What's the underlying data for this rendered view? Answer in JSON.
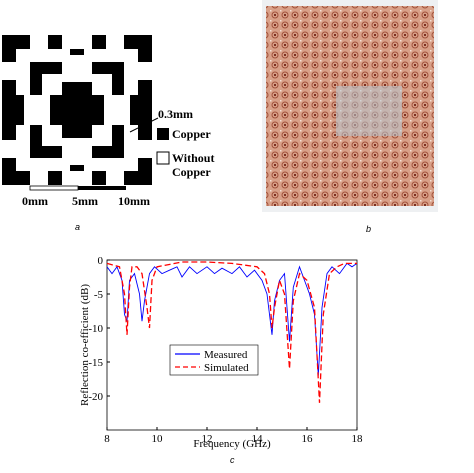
{
  "panels": {
    "a_label": "a",
    "b_label": "b",
    "c_label": "c",
    "thickness": "0.3mm",
    "copper": "Copper",
    "without_copper": [
      "Without",
      "Copper"
    ],
    "scale": [
      "0mm",
      "5mm",
      "10mm"
    ]
  },
  "chart_data": {
    "type": "line",
    "xlabel": "Frequency (GHz)",
    "ylabel": "Reflection co-efficient (dB)",
    "xlim": [
      8,
      18
    ],
    "xticks": [
      8,
      10,
      12,
      14,
      16,
      18
    ],
    "ylim": [
      -25,
      0
    ],
    "yticks": [
      0,
      -5,
      -10,
      -15,
      -20
    ],
    "legend": "center-left",
    "series": [
      {
        "name": "Measured",
        "color": "#0000ff",
        "dash": false,
        "x": [
          8,
          8.2,
          8.4,
          8.6,
          8.7,
          8.8,
          8.9,
          9.1,
          9.3,
          9.4,
          9.5,
          9.7,
          9.9,
          10.2,
          10.5,
          10.8,
          11,
          11.3,
          11.6,
          12,
          12.3,
          12.6,
          13,
          13.3,
          13.6,
          13.9,
          14.2,
          14.4,
          14.5,
          14.6,
          14.7,
          14.9,
          15.1,
          15.3,
          15.45,
          15.7,
          15.9,
          16.1,
          16.3,
          16.45,
          16.6,
          16.8,
          17,
          17.3,
          17.6,
          17.8,
          18
        ],
        "values": [
          -1,
          -2,
          -1,
          -3,
          -8,
          -9,
          -3,
          -2,
          -5,
          -9,
          -6,
          -2,
          -1,
          -2,
          -1.5,
          -1,
          -2.5,
          -1,
          -2,
          -1,
          -2,
          -1.2,
          -2,
          -1,
          -2.5,
          -1.5,
          -3,
          -5,
          -8,
          -11,
          -6,
          -3,
          -2,
          -12,
          -4,
          -1,
          -3,
          -5,
          -8,
          -17,
          -7,
          -2,
          -1,
          -2,
          -0.5,
          -1,
          -0.5
        ]
      },
      {
        "name": "Simulated",
        "color": "#ff0000",
        "dash": true,
        "x": [
          8,
          8.5,
          8.7,
          8.8,
          8.9,
          9,
          9.2,
          9.4,
          9.6,
          9.7,
          9.8,
          10,
          11,
          12,
          13,
          14,
          14.3,
          14.5,
          14.6,
          14.7,
          14.9,
          15.1,
          15.3,
          15.45,
          15.7,
          16,
          16.3,
          16.5,
          16.65,
          16.9,
          17.2,
          17.5,
          18
        ],
        "values": [
          -0.5,
          -1,
          -5,
          -11,
          -4,
          -1,
          -1,
          -2,
          -7,
          -10,
          -3,
          -1,
          -0.3,
          -0.3,
          -0.5,
          -1,
          -2,
          -5,
          -10,
          -7,
          -3,
          -5,
          -16,
          -6,
          -2,
          -3,
          -7,
          -21,
          -8,
          -2,
          -1,
          -0.5,
          -0.5
        ]
      }
    ]
  }
}
